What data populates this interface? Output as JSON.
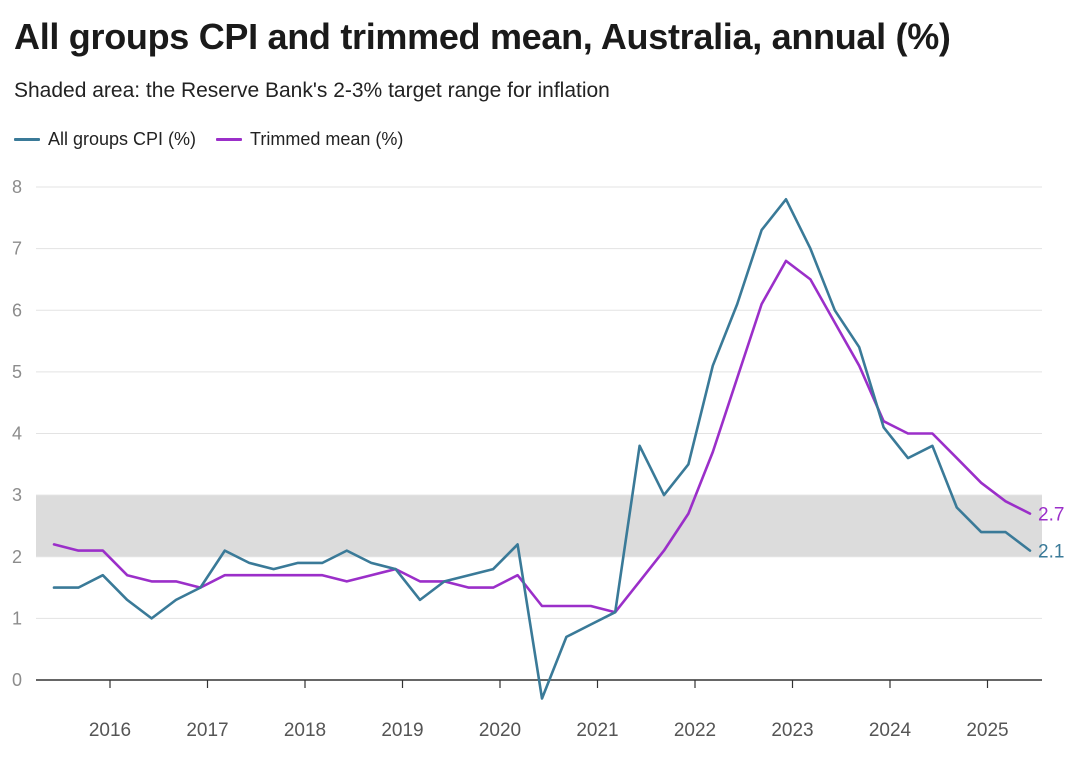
{
  "title": "All groups CPI and trimmed mean, Australia, annual (%)",
  "subtitle": "Shaded area: the Reserve Bank's 2-3% target range for inflation",
  "colors": {
    "cpi": "#3a7a98",
    "trimmed": "#9b2fc9",
    "band": "#dcdcdc",
    "grid": "#e3e3e3",
    "axis": "#333333"
  },
  "chart_data": {
    "type": "line",
    "title": "All groups CPI and trimmed mean, Australia, annual (%)",
    "ylim": [
      0,
      8
    ],
    "yticks": [
      "0",
      "1",
      "2",
      "3",
      "4",
      "5",
      "6",
      "7",
      "8"
    ],
    "xticks": [
      "2016",
      "2017",
      "2018",
      "2019",
      "2020",
      "2021",
      "2022",
      "2023",
      "2024",
      "2025"
    ],
    "target_band": [
      2,
      3
    ],
    "x": [
      "Jun 2015",
      "Sep 2015",
      "Dec 2015",
      "Mar 2016",
      "Jun 2016",
      "Sep 2016",
      "Dec 2016",
      "Mar 2017",
      "Jun 2017",
      "Sep 2017",
      "Dec 2017",
      "Mar 2018",
      "Jun 2018",
      "Sep 2018",
      "Dec 2018",
      "Mar 2019",
      "Jun 2019",
      "Sep 2019",
      "Dec 2019",
      "Mar 2020",
      "Jun 2020",
      "Sep 2020",
      "Dec 2020",
      "Mar 2021",
      "Jun 2021",
      "Sep 2021",
      "Dec 2021",
      "Mar 2022",
      "Jun 2022",
      "Sep 2022",
      "Dec 2022",
      "Mar 2023",
      "Jun 2023",
      "Sep 2023",
      "Dec 2023",
      "Mar 2024",
      "Jun 2024",
      "Sep 2024",
      "Dec 2024",
      "Mar 2025",
      "Jun 2025"
    ],
    "series": [
      {
        "name": "All groups CPI (%)",
        "end_label": "2.1",
        "values": [
          1.5,
          1.5,
          1.7,
          1.3,
          1.0,
          1.3,
          1.5,
          2.1,
          1.9,
          1.8,
          1.9,
          1.9,
          2.1,
          1.9,
          1.8,
          1.3,
          1.6,
          1.7,
          1.8,
          2.2,
          -0.3,
          0.7,
          0.9,
          1.1,
          3.8,
          3.0,
          3.5,
          5.1,
          6.1,
          7.3,
          7.8,
          7.0,
          6.0,
          5.4,
          4.1,
          3.6,
          3.8,
          2.8,
          2.4,
          2.4,
          2.1
        ]
      },
      {
        "name": "Trimmed mean (%)",
        "end_label": "2.7",
        "values": [
          2.2,
          2.1,
          2.1,
          1.7,
          1.6,
          1.6,
          1.5,
          1.7,
          1.7,
          1.7,
          1.7,
          1.7,
          1.6,
          1.7,
          1.8,
          1.6,
          1.6,
          1.5,
          1.5,
          1.7,
          1.2,
          1.2,
          1.2,
          1.1,
          1.6,
          2.1,
          2.7,
          3.7,
          4.9,
          6.1,
          6.8,
          6.5,
          5.8,
          5.1,
          4.2,
          4.0,
          4.0,
          3.6,
          3.2,
          2.9,
          2.7
        ]
      }
    ]
  }
}
